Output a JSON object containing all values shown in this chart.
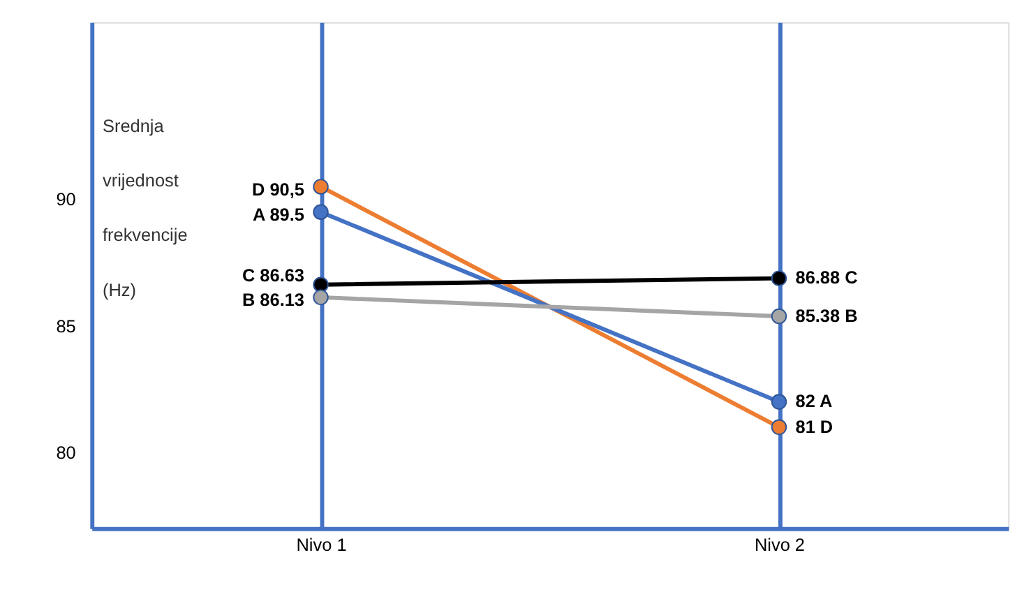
{
  "chart_data": {
    "type": "line",
    "ylabel": "Srednja vrijednost frekvencije (Hz)",
    "categories": [
      "Nivo 1",
      "Nivo 2"
    ],
    "series": [
      {
        "name": "D",
        "color": "#ed7d31",
        "values": [
          90.5,
          81
        ],
        "value_labels": [
          "90,5",
          "81"
        ]
      },
      {
        "name": "A",
        "color": "#4472c4",
        "values": [
          89.5,
          82
        ],
        "value_labels": [
          "89.5",
          "82"
        ]
      },
      {
        "name": "C",
        "color": "#000000",
        "values": [
          86.63,
          86.88
        ],
        "value_labels": [
          "86.63",
          "86.88"
        ]
      },
      {
        "name": "B",
        "color": "#a5a5a5",
        "values": [
          86.13,
          85.38
        ],
        "value_labels": [
          "86.13",
          "85.38"
        ]
      }
    ],
    "ylim": [
      77,
      97
    ],
    "yticks": [
      80,
      85,
      90
    ],
    "grid": "x",
    "marker": "circle"
  }
}
